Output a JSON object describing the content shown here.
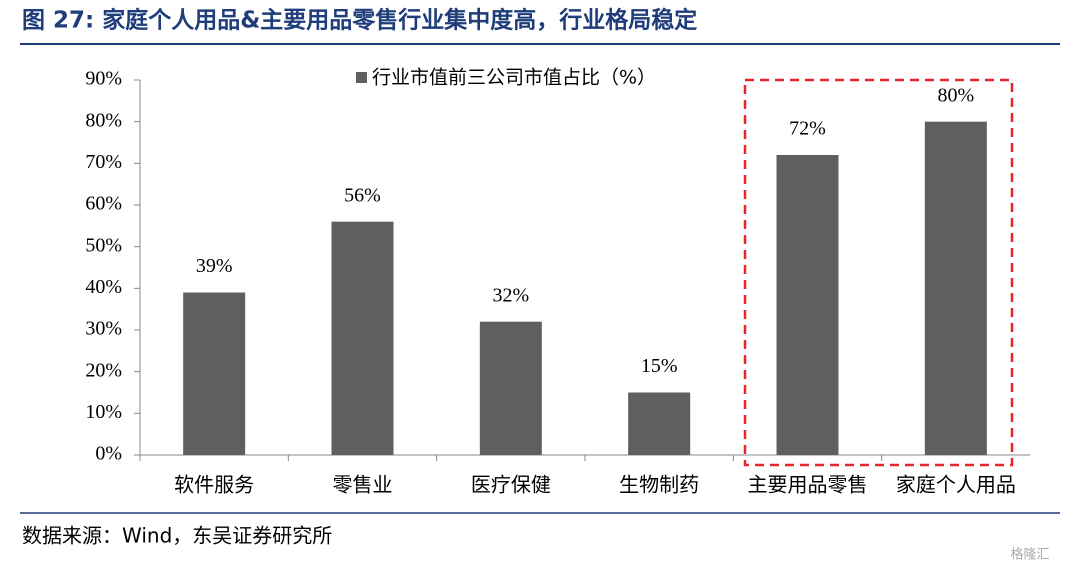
{
  "chart_data": {
    "type": "bar",
    "title": "图 27:  家庭个人用品&主要用品零售行业集中度高，行业格局稳定",
    "series": [
      {
        "name": "行业市值前三公司市值占比（%）",
        "color": "#5f5f5f",
        "values": [
          39,
          56,
          32,
          15,
          72,
          80
        ],
        "value_labels": [
          "39%",
          "56%",
          "32%",
          "15%",
          "72%",
          "80%"
        ]
      }
    ],
    "categories": [
      "软件服务",
      "零售业",
      "医疗保健",
      "生物制药",
      "主要用品零售",
      "家庭个人用品"
    ],
    "ylim": [
      0,
      90
    ],
    "yticks": [
      {
        "value": 0,
        "label": "0%"
      },
      {
        "value": 10,
        "label": "10%"
      },
      {
        "value": 20,
        "label": "20%"
      },
      {
        "value": 30,
        "label": "30%"
      },
      {
        "value": 40,
        "label": "40%"
      },
      {
        "value": 50,
        "label": "50%"
      },
      {
        "value": 60,
        "label": "60%"
      },
      {
        "value": 70,
        "label": "70%"
      },
      {
        "value": 80,
        "label": "80%"
      },
      {
        "value": 90,
        "label": "90%"
      }
    ],
    "source": "数据来源：Wind，东吴证券研究所",
    "watermark": "格隆汇"
  }
}
